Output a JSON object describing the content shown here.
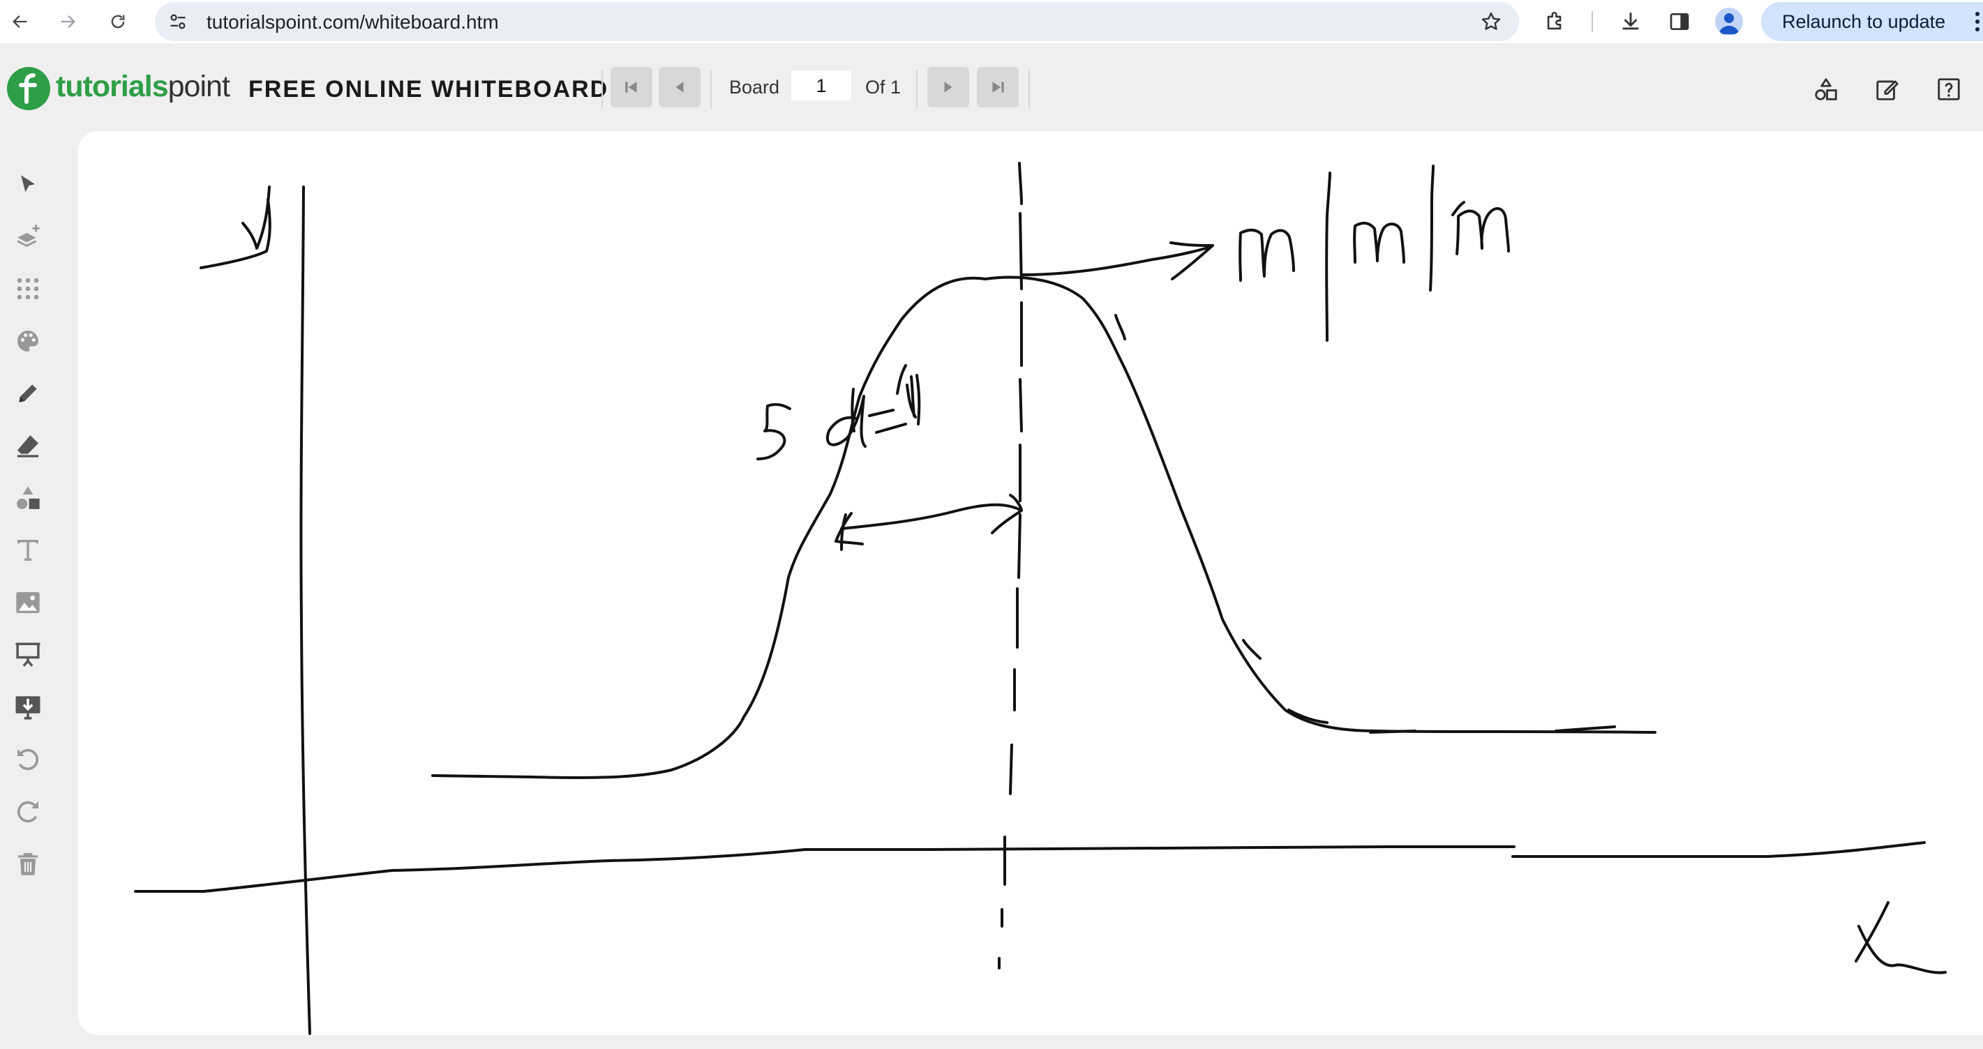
{
  "browser": {
    "url": "tutorialspoint.com/whiteboard.htm",
    "relaunch_label": "Relaunch to update",
    "icons": [
      "back-icon",
      "forward-icon",
      "reload-icon",
      "site-settings-icon",
      "bookmark-star-icon",
      "extensions-icon",
      "download-icon",
      "side-panel-icon",
      "profile-icon",
      "menu-dots-icon"
    ]
  },
  "header": {
    "logo_part1": "tutorials",
    "logo_part2": "point",
    "title": "FREE ONLINE WHITEBOARD",
    "board_label": "Board",
    "board_value": "1",
    "of_label": "Of 1",
    "right_tools": [
      "shapes-icon",
      "edit-icon",
      "help-icon"
    ]
  },
  "toolbar": {
    "tools": [
      "select-pointer-icon",
      "layers-add-icon",
      "dot-grid-icon",
      "color-palette-icon",
      "pencil-icon",
      "eraser-icon",
      "shapes-icon",
      "text-icon",
      "image-icon",
      "presentation-icon",
      "download-board-icon",
      "undo-icon",
      "redo-icon",
      "trash-icon"
    ]
  },
  "colors": {
    "brand_green": "#2e9e47",
    "ink": "#111111",
    "canvas_bg": "#ffffff",
    "app_bg": "#efefef",
    "relaunch_bg": "#d3e3fd"
  }
}
